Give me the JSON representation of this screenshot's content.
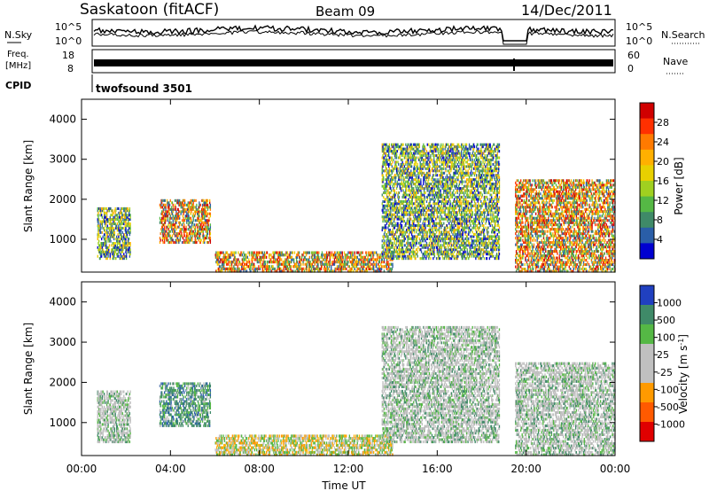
{
  "header": {
    "station": "Saskatoon (fitACF)",
    "beam": "Beam 09",
    "date": "14/Dec/2011"
  },
  "noise_panel": {
    "left_label": "N.Sky",
    "right_label": "N.Search",
    "left_ticks": [
      "10^5",
      "10^0"
    ],
    "right_ticks": [
      "10^5",
      "10^0"
    ]
  },
  "freq_panel": {
    "left_label_1": "Freq.",
    "left_label_2": "[MHz]",
    "right_label": "Nave",
    "left_ticks": [
      "18",
      "8"
    ],
    "right_ticks": [
      "60",
      "0"
    ]
  },
  "cpid": {
    "label": "CPID",
    "value": "twofsound 3501"
  },
  "chart_data": [
    {
      "type": "heatmap",
      "name": "power",
      "ylabel": "Slant Range [km]",
      "y_ticks": [
        "4000",
        "3000",
        "2000",
        "1000"
      ],
      "ylim": [
        180,
        4500
      ],
      "colorbar_label": "Power [dB]",
      "colorbar_ticks": [
        "28",
        "24",
        "20",
        "16",
        "12",
        "8",
        "4"
      ],
      "colorbar_colors": [
        "#d00000",
        "#ff3000",
        "#ff7a00",
        "#ffb000",
        "#e8d000",
        "#a0d020",
        "#55b845",
        "#3f8a68",
        "#2a5ea8",
        "#0000d0"
      ],
      "echo_regions": [
        {
          "t": [
            0.7,
            2.2
          ],
          "r": [
            500,
            1800
          ],
          "level": "mid"
        },
        {
          "t": [
            3.5,
            5.8
          ],
          "r": [
            900,
            2000
          ],
          "level": "high"
        },
        {
          "t": [
            6.0,
            14.0
          ],
          "r": [
            180,
            700
          ],
          "level": "high"
        },
        {
          "t": [
            13.5,
            18.8
          ],
          "r": [
            500,
            3400
          ],
          "level": "mid"
        },
        {
          "t": [
            19.5,
            24.0
          ],
          "r": [
            180,
            2500
          ],
          "level": "high"
        }
      ]
    },
    {
      "type": "heatmap",
      "name": "velocity",
      "ylabel": "Slant Range [km]",
      "xlabel": "Time UT",
      "y_ticks": [
        "4000",
        "3000",
        "2000",
        "1000"
      ],
      "x_ticks": [
        "00:00",
        "04:00",
        "08:00",
        "12:00",
        "16:00",
        "20:00",
        "00:00"
      ],
      "xlim": [
        0,
        24
      ],
      "ylim": [
        180,
        4500
      ],
      "colorbar_label": "Velocity [m s",
      "colorbar_label_sup": "-1",
      "colorbar_label_end": "]",
      "colorbar_ticks": [
        "1000",
        "500",
        "100",
        "25",
        "-25",
        "-100",
        "-500",
        "-1000"
      ],
      "colorbar_colors": [
        "#2040c0",
        "#3f8a68",
        "#55b845",
        "#c0c0c0",
        "#c0c0c0",
        "#ff9a00",
        "#ff5a00",
        "#e00000"
      ],
      "echo_regions": [
        {
          "t": [
            0.7,
            2.2
          ],
          "r": [
            500,
            1800
          ],
          "level": "ground"
        },
        {
          "t": [
            3.5,
            5.8
          ],
          "r": [
            900,
            2000
          ],
          "level": "toward"
        },
        {
          "t": [
            6.0,
            14.0
          ],
          "r": [
            180,
            700
          ],
          "level": "mixed"
        },
        {
          "t": [
            13.5,
            18.8
          ],
          "r": [
            500,
            3400
          ],
          "level": "ground"
        },
        {
          "t": [
            19.5,
            24.0
          ],
          "r": [
            180,
            2500
          ],
          "level": "ground"
        }
      ]
    }
  ]
}
